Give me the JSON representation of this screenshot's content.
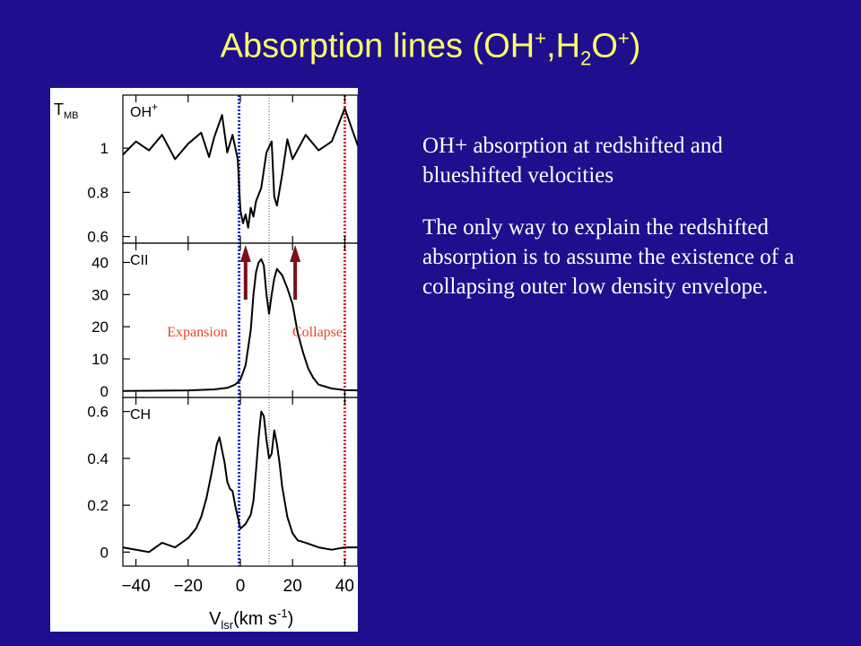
{
  "slide": {
    "title_main": "Absorption lines (OH",
    "title_sup1": "+",
    "title_mid": ",H",
    "title_sub": "2",
    "title_o": "O",
    "title_sup2": "+",
    "title_close": ")",
    "paragraphs": [
      "OH+ absorption at redshifted and blueshifted velocities",
      "The only way to explain the redshifted absorption is to assume the existence of a collapsing outer low density envelope."
    ]
  },
  "colors": {
    "background": "#1f0f8e",
    "title": "#ffff66",
    "body_text": "#ffffff",
    "blue_line": "#1a2bd8",
    "red_line": "#e0282a",
    "arrow": "#7a1018",
    "annotation": "#e8452a"
  },
  "chart_data": {
    "type": "line",
    "x_label": "V",
    "x_label_sub": "lsr",
    "x_label_unit": "(km s",
    "x_label_exp": "-1",
    "x_label_close": ")",
    "x_ticks": [
      "−40",
      "−20",
      "0",
      "20",
      "40"
    ],
    "x_range": [
      -45,
      45
    ],
    "y_label": "T",
    "y_label_sub": "MB",
    "blue_line_x": -0.5,
    "red_line_x": 40,
    "center_line_x": 11,
    "annotations": [
      "Expansion",
      "Collapse"
    ],
    "arrow_x": [
      2,
      21
    ],
    "panels": [
      {
        "name": "OH",
        "name_sup": "+",
        "y_range": [
          0.57,
          1.24
        ],
        "y_ticks": [
          "1",
          "0.8",
          "0.6"
        ],
        "y_tick_values": [
          1.0,
          0.8,
          0.6
        ],
        "x": [
          -45,
          -40,
          -35,
          -30,
          -25,
          -20,
          -15,
          -12,
          -10,
          -7,
          -5,
          -3,
          -1,
          0,
          1,
          2,
          3,
          4,
          5,
          6,
          8,
          10,
          12,
          13,
          14,
          16,
          18,
          20,
          25,
          30,
          35,
          40,
          45
        ],
        "y": [
          0.97,
          1.03,
          0.99,
          1.06,
          0.95,
          1.02,
          1.07,
          0.96,
          1.05,
          1.15,
          0.98,
          1.06,
          0.95,
          0.72,
          0.66,
          0.7,
          0.64,
          0.73,
          0.69,
          0.76,
          0.82,
          0.98,
          1.03,
          0.78,
          0.74,
          0.88,
          1.04,
          0.95,
          1.06,
          0.99,
          1.03,
          1.18,
          1.01
        ]
      },
      {
        "name": "CII",
        "y_range": [
          -2,
          46
        ],
        "y_ticks": [
          "40",
          "30",
          "20",
          "10",
          "0"
        ],
        "y_tick_values": [
          40,
          30,
          20,
          10,
          0
        ],
        "x": [
          -45,
          -20,
          -10,
          -5,
          -2,
          0,
          2,
          4,
          5,
          6,
          7,
          8,
          9,
          10,
          11,
          12,
          13,
          14,
          15,
          16,
          18,
          20,
          22,
          24,
          26,
          28,
          30,
          35,
          40,
          45
        ],
        "y": [
          0,
          0.2,
          0.5,
          1,
          2,
          3.5,
          8,
          19,
          30,
          37,
          40,
          41,
          39,
          30,
          24,
          30,
          35,
          38,
          37,
          36,
          32,
          27,
          18,
          12,
          7,
          4,
          2,
          0.8,
          0.3,
          0.2
        ]
      },
      {
        "name": "CH",
        "y_range": [
          -0.06,
          0.66
        ],
        "y_ticks": [
          "0.6",
          "0.4",
          "0.2",
          "0"
        ],
        "y_tick_values": [
          0.6,
          0.4,
          0.2,
          0
        ],
        "x": [
          -45,
          -35,
          -30,
          -25,
          -20,
          -17,
          -15,
          -13,
          -11,
          -9,
          -8,
          -6,
          -5,
          -4,
          -3,
          -2,
          0,
          2,
          4,
          5,
          6,
          7,
          8,
          9,
          10,
          11,
          12,
          13,
          14,
          15,
          16,
          18,
          20,
          22,
          25,
          30,
          35,
          40,
          45
        ],
        "y": [
          0.02,
          0.0,
          0.04,
          0.02,
          0.06,
          0.1,
          0.15,
          0.23,
          0.34,
          0.46,
          0.49,
          0.38,
          0.3,
          0.27,
          0.26,
          0.2,
          0.1,
          0.12,
          0.16,
          0.22,
          0.35,
          0.49,
          0.6,
          0.58,
          0.48,
          0.4,
          0.42,
          0.52,
          0.46,
          0.38,
          0.28,
          0.15,
          0.08,
          0.05,
          0.04,
          0.02,
          0.01,
          0.02,
          0.02
        ]
      }
    ]
  }
}
